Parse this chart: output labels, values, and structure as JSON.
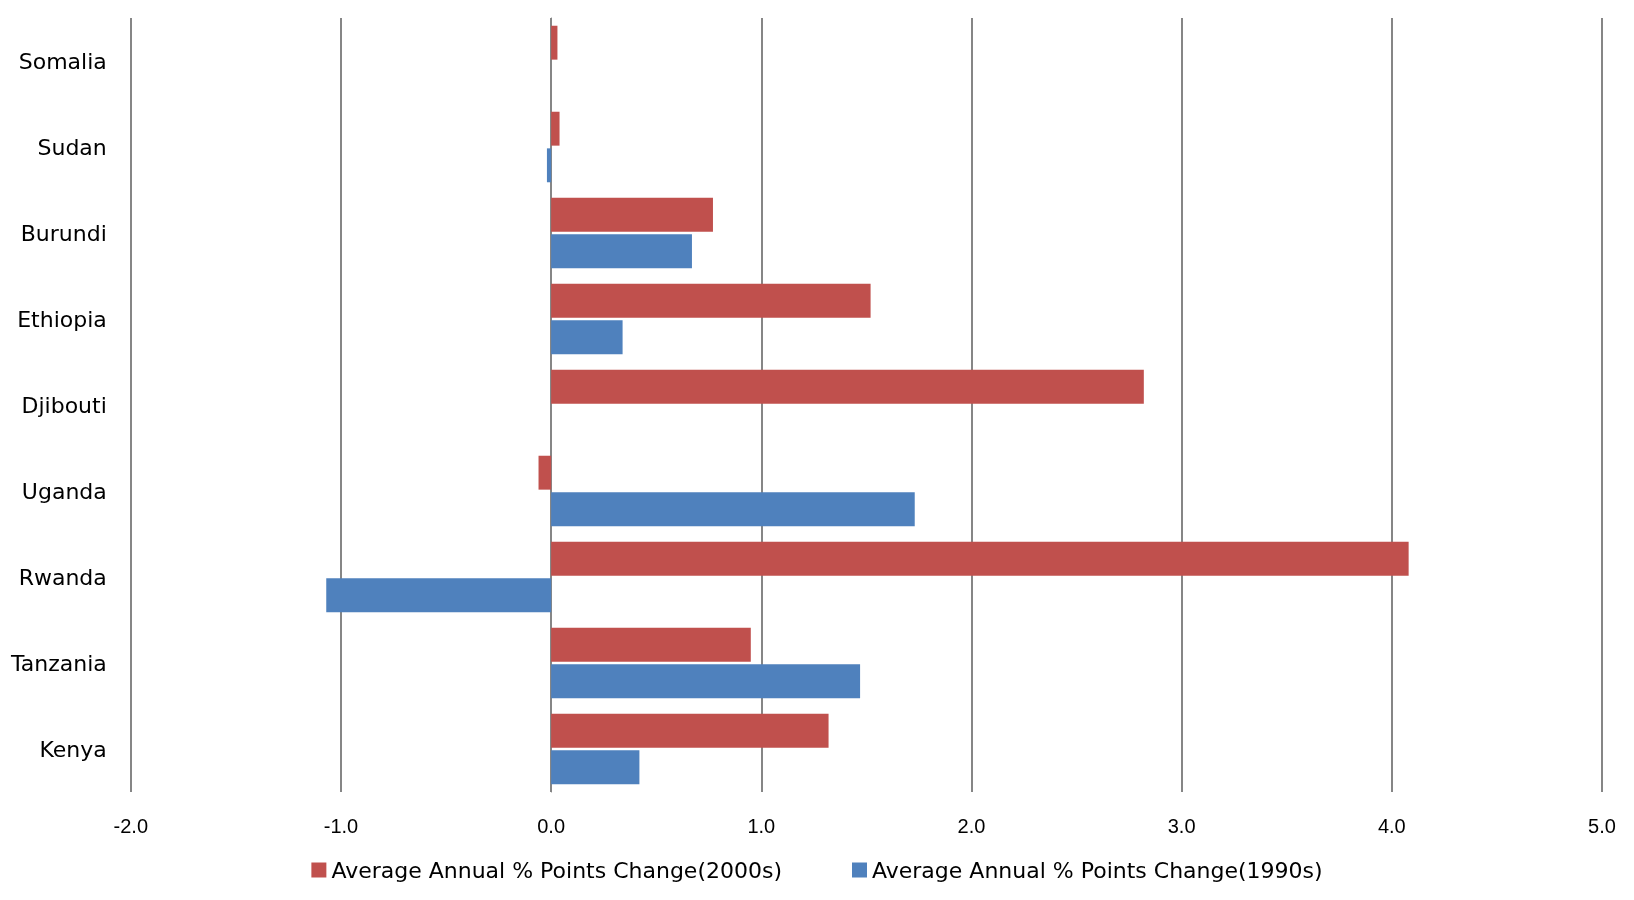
{
  "chart_data": {
    "type": "bar",
    "orientation": "horizontal",
    "categories": [
      "Somalia",
      "Sudan",
      "Burundi",
      "Ethiopia",
      "Djibouti",
      "Uganda",
      "Rwanda",
      "Tanzania",
      "Kenya"
    ],
    "series": [
      {
        "name": "Average Annual % Points Change(2000s)",
        "color": "#c0504d",
        "values": [
          0.03,
          0.04,
          0.77,
          1.52,
          2.82,
          -0.06,
          4.08,
          0.95,
          1.32
        ]
      },
      {
        "name": "Average Annual % Points Change(1990s)",
        "color": "#4f81bd",
        "values": [
          null,
          -0.02,
          0.67,
          0.34,
          null,
          1.73,
          -1.07,
          1.47,
          0.42
        ]
      }
    ],
    "xlim": [
      -2,
      5
    ],
    "xticks": [
      {
        "value": -2,
        "label": "-2.0"
      },
      {
        "value": -1,
        "label": "-1.0"
      },
      {
        "value": 0,
        "label": "0.0"
      },
      {
        "value": 1,
        "label": "1.0"
      },
      {
        "value": 2,
        "label": "2.0"
      },
      {
        "value": 3,
        "label": "3.0"
      },
      {
        "value": 4,
        "label": "4.0"
      },
      {
        "value": 5,
        "label": "5.0"
      }
    ],
    "grid": "x",
    "legend": "bottom"
  }
}
